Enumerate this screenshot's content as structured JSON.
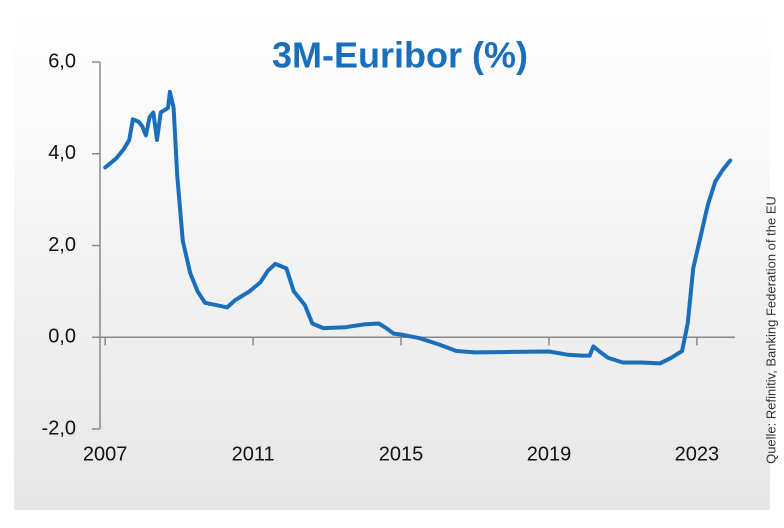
{
  "chart_data": {
    "type": "line",
    "title": "3M-Euribor (%)",
    "source": "Quelle: Refinitiv, Banking Federation of the EU",
    "x": [
      2007.0,
      2007.3,
      2007.5,
      2007.65,
      2007.75,
      2007.9,
      2008.0,
      2008.1,
      2008.2,
      2008.3,
      2008.4,
      2008.5,
      2008.7,
      2008.75,
      2008.85,
      2008.95,
      2009.1,
      2009.3,
      2009.5,
      2009.7,
      2010.0,
      2010.3,
      2010.5,
      2010.7,
      2010.9,
      2011.2,
      2011.4,
      2011.6,
      2011.9,
      2012.1,
      2012.4,
      2012.6,
      2012.9,
      2013.5,
      2014.0,
      2014.4,
      2014.6,
      2014.8,
      2015.0,
      2015.5,
      2016.0,
      2016.5,
      2017.0,
      2018.0,
      2019.0,
      2019.5,
      2019.9,
      2020.1,
      2020.2,
      2020.35,
      2020.6,
      2021.0,
      2021.5,
      2022.0,
      2022.3,
      2022.6,
      2022.75,
      2022.9,
      2023.1,
      2023.3,
      2023.5,
      2023.7,
      2023.9
    ],
    "series": [
      {
        "name": "3M-Euribor",
        "color": "#1a6fbd",
        "values": [
          3.7,
          3.9,
          4.1,
          4.3,
          4.75,
          4.7,
          4.6,
          4.4,
          4.8,
          4.9,
          4.3,
          4.9,
          5.0,
          5.35,
          5.0,
          3.5,
          2.1,
          1.4,
          1.0,
          0.75,
          0.7,
          0.65,
          0.8,
          0.9,
          1.0,
          1.2,
          1.45,
          1.6,
          1.5,
          1.0,
          0.7,
          0.3,
          0.2,
          0.22,
          0.28,
          0.3,
          0.2,
          0.08,
          0.06,
          -0.02,
          -0.15,
          -0.3,
          -0.33,
          -0.32,
          -0.31,
          -0.38,
          -0.4,
          -0.4,
          -0.2,
          -0.3,
          -0.45,
          -0.55,
          -0.55,
          -0.57,
          -0.45,
          -0.3,
          0.3,
          1.5,
          2.2,
          2.9,
          3.4,
          3.65,
          3.85
        ]
      }
    ],
    "xlim": [
      2006.86,
      2024.03
    ],
    "xticks": [
      2007,
      2011,
      2015,
      2019,
      2023
    ],
    "ylim": [
      -2,
      6
    ],
    "yticks": [
      {
        "value": -2,
        "label": "-2,0"
      },
      {
        "value": 0,
        "label": "0,0"
      },
      {
        "value": 2,
        "label": "2,0"
      },
      {
        "value": 4,
        "label": "4,0"
      },
      {
        "value": 6,
        "label": "6,0"
      }
    ]
  }
}
